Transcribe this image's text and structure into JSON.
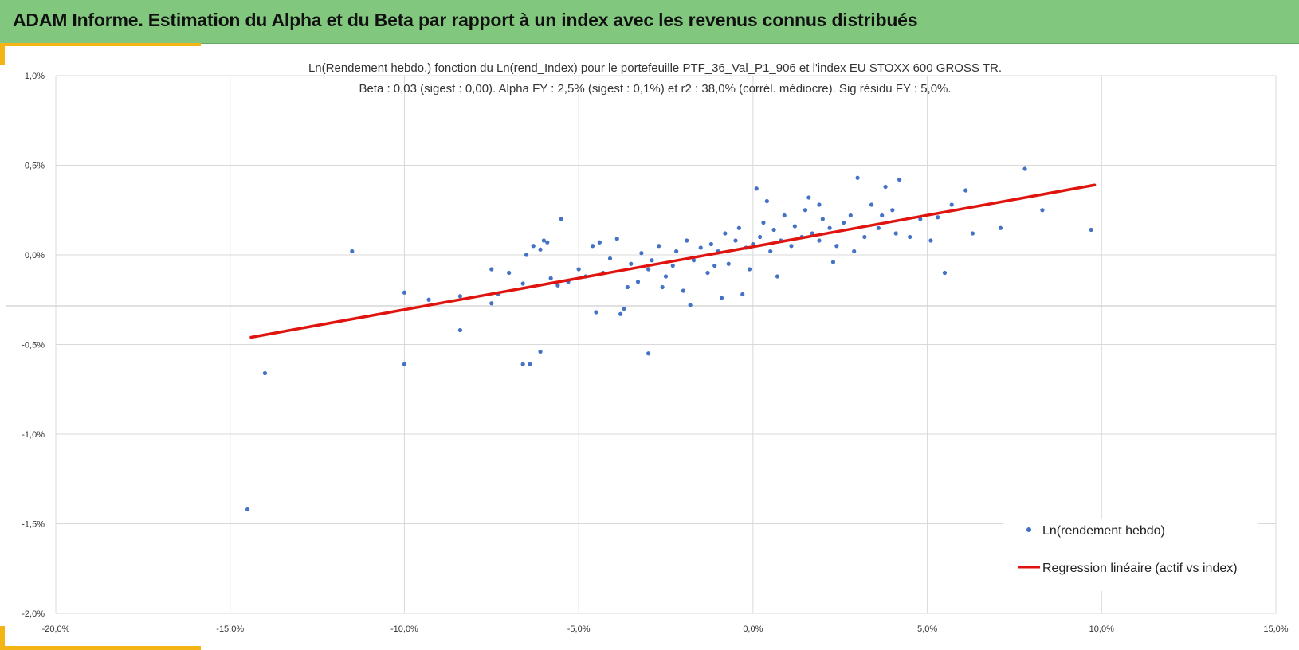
{
  "header": {
    "title": "ADAM Informe. Estimation du Alpha et du Beta par rapport à un index avec les revenus connus distribués",
    "color": "#82c77e",
    "accent_color": "#f2b515"
  },
  "chart_data": {
    "type": "scatter",
    "title_line1": "Ln(Rendement hebdo.) fonction du Ln(rend_Index) pour le portefeuille PTF_36_Val_P1_906 et l'index EU STOXX 600 GROSS TR.",
    "title_line2": "Beta : 0,03 (sigest : 0,00).  Alpha FY : 2,5% (sigest : 0,1%) et r2 : 38,0% (corrél. médiocre). Sig résidu FY : 5,0%.",
    "xlim": [
      -20,
      15
    ],
    "ylim": [
      -2.0,
      1.0
    ],
    "x_ticks": [
      -20,
      -15,
      -10,
      -5,
      0,
      5,
      10,
      15
    ],
    "x_tick_labels": [
      "-20,0%",
      "-15,0%",
      "-10,0%",
      "-5,0%",
      "0,0%",
      "5,0%",
      "10,0%",
      "15,0%"
    ],
    "y_ticks": [
      1.0,
      0.5,
      0.0,
      -0.5,
      -1.0,
      -1.5,
      -2.0
    ],
    "y_tick_labels": [
      "1,0%",
      "0,5%",
      "0,0%",
      "-0,5%",
      "-1,0%",
      "-1,5%",
      "-2,0%"
    ],
    "grid": true,
    "legend_position": "bottom-right",
    "series": [
      {
        "name": "Ln(rendement hebdo)",
        "color": "#4472c4",
        "x": [
          -14.5,
          -14.0,
          -11.5,
          -10.0,
          -10.0,
          -9.3,
          -8.4,
          -8.4,
          -7.5,
          -7.5,
          -7.3,
          -7.0,
          -6.6,
          -6.5,
          -6.4,
          -6.3,
          -6.1,
          -6.0,
          -5.9,
          -5.8,
          -5.5,
          -5.3,
          -5.0,
          -4.8,
          -4.6,
          -4.5,
          -4.3,
          -4.1,
          -3.9,
          -3.7,
          -3.6,
          -3.5,
          -3.3,
          -3.2,
          -3.0,
          -2.9,
          -2.7,
          -2.5,
          -2.3,
          -2.2,
          -2.0,
          -1.9,
          -1.7,
          -1.5,
          -1.3,
          -1.2,
          -1.0,
          -0.8,
          -0.7,
          -0.5,
          -0.4,
          -0.2,
          -0.1,
          0.0,
          0.2,
          0.3,
          0.5,
          0.6,
          0.8,
          0.9,
          1.1,
          1.2,
          1.4,
          1.5,
          1.7,
          1.9,
          2.0,
          2.2,
          2.4,
          2.6,
          2.8,
          3.0,
          3.2,
          3.4,
          3.6,
          3.8,
          4.0,
          4.2,
          4.5,
          4.8,
          5.1,
          5.3,
          5.5,
          5.7,
          6.1,
          6.3,
          7.1,
          7.8,
          8.3,
          9.7,
          -3.0,
          -3.8,
          -6.6,
          -6.1,
          -1.8,
          2.9,
          4.1,
          0.4,
          -0.3,
          1.6,
          -2.6,
          -1.1,
          0.7,
          1.9,
          -4.4,
          -5.6,
          3.7,
          2.3,
          -0.9,
          0.1
        ],
        "y": [
          -1.42,
          -0.66,
          0.02,
          -0.21,
          -0.61,
          -0.25,
          -0.23,
          -0.42,
          -0.08,
          -0.27,
          -0.22,
          -0.1,
          -0.16,
          0.0,
          -0.61,
          0.05,
          -0.54,
          0.08,
          0.07,
          -0.13,
          0.2,
          -0.15,
          -0.08,
          -0.12,
          0.05,
          -0.32,
          -0.1,
          -0.02,
          0.09,
          -0.3,
          -0.18,
          -0.05,
          -0.15,
          0.01,
          -0.08,
          -0.03,
          0.05,
          -0.12,
          -0.06,
          0.02,
          -0.2,
          0.08,
          -0.03,
          0.04,
          -0.1,
          0.06,
          0.02,
          0.12,
          -0.05,
          0.08,
          0.15,
          0.04,
          -0.08,
          0.06,
          0.1,
          0.18,
          0.02,
          0.14,
          0.08,
          0.22,
          0.05,
          0.16,
          0.1,
          0.25,
          0.12,
          0.08,
          0.2,
          0.15,
          0.05,
          0.18,
          0.22,
          0.43,
          0.1,
          0.28,
          0.15,
          0.38,
          0.25,
          0.42,
          0.1,
          0.2,
          0.08,
          0.21,
          -0.1,
          0.28,
          0.36,
          0.12,
          0.15,
          0.48,
          0.25,
          0.14,
          -0.55,
          -0.33,
          -0.61,
          0.03,
          -0.28,
          0.02,
          0.12,
          0.3,
          -0.22,
          0.32,
          -0.18,
          -0.06,
          -0.12,
          0.28,
          0.07,
          -0.17,
          0.22,
          -0.04,
          -0.24,
          0.37
        ]
      },
      {
        "name": "Regression linéaire (actif vs index)",
        "color": "#e0140f",
        "type": "line",
        "x": [
          -14.4,
          9.8
        ],
        "y": [
          -0.46,
          0.39
        ]
      }
    ]
  }
}
